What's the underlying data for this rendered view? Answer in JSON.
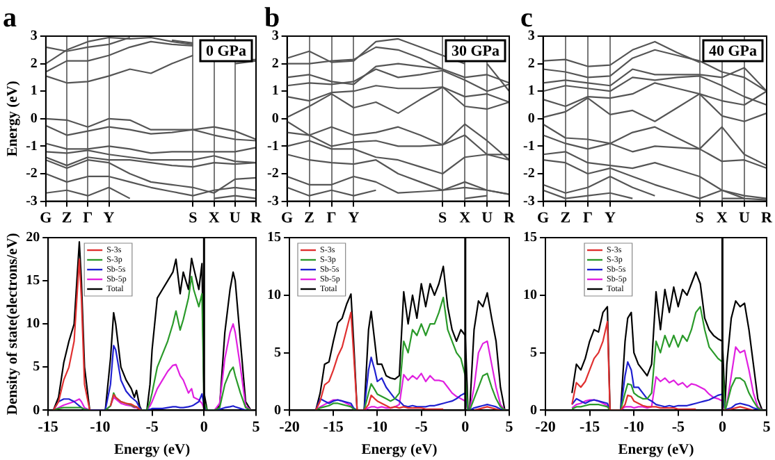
{
  "chart_data": [
    {
      "type": "line",
      "title": "a",
      "ylabel": "Energy (eV)",
      "annotations": [
        "0 GPa"
      ],
      "grid": "x",
      "legend": false,
      "categories": [
        "G",
        "Z",
        "Γ",
        "Y",
        null,
        null,
        null,
        "S",
        "X",
        "U",
        "R"
      ],
      "ylim": [
        -3,
        3
      ],
      "yticks": [
        -3,
        -2,
        -1,
        0,
        1,
        2,
        3
      ],
      "series": [
        {
          "color": "#555555",
          "values": [
            1.55,
            1.3,
            1.35,
            1.55,
            1.8,
            1.65,
            2.0,
            2.3,
            null,
            2.0,
            2.1
          ]
        },
        {
          "color": "#555555",
          "values": [
            1.7,
            2.1,
            2.1,
            2.3,
            2.6,
            2.8,
            2.7,
            2.65,
            null,
            2.1,
            2.15
          ]
        },
        {
          "color": "#555555",
          "values": [
            2.0,
            2.5,
            2.8,
            2.95,
            2.9,
            2.95,
            2.8,
            2.7,
            null,
            null,
            null
          ]
        },
        {
          "color": "#555555",
          "values": [
            2.6,
            2.45,
            2.6,
            2.7,
            2.95,
            null,
            2.85,
            2.75,
            null,
            null,
            null
          ]
        },
        {
          "color": "#555555",
          "values": [
            0.0,
            -0.05,
            -0.3,
            0.0,
            -0.05,
            -0.4,
            -0.4,
            -0.4,
            -0.3,
            -0.45,
            -0.75
          ]
        },
        {
          "color": "#555555",
          "values": [
            -0.25,
            -0.6,
            -0.45,
            -0.3,
            -0.4,
            -0.55,
            -0.5,
            -0.4,
            -0.6,
            -0.75,
            -0.8
          ]
        },
        {
          "color": "#555555",
          "values": [
            -1.4,
            -1.7,
            -1.4,
            -1.5,
            -1.5,
            -1.6,
            -1.7,
            -1.75,
            -1.6,
            -1.65,
            -1.6
          ]
        },
        {
          "color": "#555555",
          "values": [
            -0.9,
            -1.1,
            -1.1,
            -1.0,
            -1.1,
            -1.25,
            -1.2,
            -1.2,
            -1.2,
            -1.2,
            -1.05
          ]
        },
        {
          "color": "#555555",
          "values": [
            -1.2,
            -1.25,
            -1.15,
            -1.3,
            -1.4,
            -1.5,
            -1.5,
            -1.5,
            -1.35,
            -1.55,
            -1.6
          ]
        },
        {
          "color": "#555555",
          "values": [
            -1.5,
            -1.8,
            -1.5,
            -1.6,
            -2.0,
            -2.3,
            -2.4,
            -2.5,
            -2.7,
            -2.2,
            -2.15
          ]
        },
        {
          "color": "#555555",
          "values": [
            -2.0,
            -2.3,
            -2.1,
            -2.1,
            -2.3,
            -2.5,
            -2.65,
            -2.8,
            -2.6,
            -2.5,
            -2.6
          ]
        },
        {
          "color": "#555555",
          "values": [
            -2.7,
            -2.6,
            -2.8,
            -2.5,
            -2.9,
            null,
            null,
            null,
            -2.9,
            -2.8,
            -2.9
          ]
        }
      ]
    },
    {
      "type": "line",
      "title": "b",
      "annotations": [
        "30 GPa"
      ],
      "grid": "x",
      "legend": false,
      "categories": [
        "G",
        "Z",
        "Γ",
        "Y",
        null,
        null,
        null,
        "S",
        "X",
        "U",
        "R"
      ],
      "ylim": [
        -3,
        3
      ],
      "yticks": [
        -3,
        -2,
        -1,
        0,
        1,
        2,
        3
      ],
      "series": [
        {
          "color": "#555555",
          "values": [
            0.05,
            0.45,
            0.9,
            0.4,
            0.6,
            0.2,
            0.7,
            1.15,
            0.45,
            0.35,
            0.6
          ]
        },
        {
          "color": "#555555",
          "values": [
            0.8,
            0.65,
            0.95,
            1.0,
            1.2,
            1.1,
            1.1,
            1.15,
            0.8,
            0.9,
            0.6
          ]
        },
        {
          "color": "#555555",
          "values": [
            1.2,
            1.3,
            1.25,
            1.35,
            1.8,
            1.5,
            1.6,
            1.75,
            1.4,
            1.0,
            1.25
          ]
        },
        {
          "color": "#555555",
          "values": [
            1.5,
            1.6,
            1.35,
            1.25,
            1.9,
            2.0,
            1.9,
            1.8,
            1.5,
            1.6,
            1.3
          ]
        },
        {
          "color": "#555555",
          "values": [
            2.0,
            2.0,
            2.1,
            2.15,
            2.6,
            2.5,
            2.2,
            1.8,
            null,
            2.0,
            1.0
          ]
        },
        {
          "color": "#555555",
          "values": [
            2.2,
            2.45,
            2.05,
            2.1,
            2.8,
            2.9,
            2.6,
            2.3,
            2.0,
            null,
            null
          ]
        },
        {
          "color": "#555555",
          "values": [
            -0.1,
            -0.6,
            -0.3,
            -0.6,
            -0.5,
            -0.3,
            -0.6,
            -0.95,
            -0.2,
            -0.8,
            -1.5
          ]
        },
        {
          "color": "#555555",
          "values": [
            -0.5,
            -0.6,
            -1.0,
            -0.85,
            -0.8,
            -1.0,
            -1.0,
            -0.95,
            -0.6,
            -1.3,
            -1.5
          ]
        },
        {
          "color": "#555555",
          "values": [
            -1.0,
            -0.8,
            -1.1,
            -1.1,
            -1.4,
            -1.5,
            -1.75,
            -2.0,
            -1.4,
            -1.3,
            -1.3
          ]
        },
        {
          "color": "#555555",
          "values": [
            -1.3,
            -1.5,
            -1.6,
            -1.65,
            -1.5,
            -2.0,
            -2.3,
            -2.6,
            -2.5,
            -2.6,
            -2.75
          ]
        },
        {
          "color": "#555555",
          "values": [
            -2.1,
            -2.4,
            -2.4,
            -2.1,
            -2.3,
            -2.7,
            -2.65,
            -2.6,
            -2.3,
            -2.6,
            -2.75
          ]
        },
        {
          "color": "#555555",
          "values": [
            -2.5,
            -2.8,
            -2.6,
            -2.8,
            -2.6,
            null,
            null,
            null,
            -2.9,
            -2.8,
            null
          ]
        }
      ]
    },
    {
      "type": "line",
      "title": "c",
      "annotations": [
        "40 GPa"
      ],
      "grid": "x",
      "legend": false,
      "categories": [
        "G",
        "Z",
        "Γ",
        "Y",
        null,
        null,
        null,
        "S",
        "X",
        "U",
        "R"
      ],
      "ylim": [
        -3,
        3
      ],
      "yticks": [
        -3,
        -2,
        -1,
        0,
        1,
        2,
        3
      ],
      "series": [
        {
          "color": "#555555",
          "values": [
            0.05,
            0.25,
            0.75,
            0.15,
            0.3,
            -0.1,
            0.4,
            0.9,
            0.1,
            -0.1,
            0.2
          ]
        },
        {
          "color": "#555555",
          "values": [
            0.7,
            0.45,
            0.8,
            0.75,
            0.9,
            1.3,
            1.1,
            0.9,
            0.65,
            0.5,
            1.0
          ]
        },
        {
          "color": "#555555",
          "values": [
            1.0,
            1.2,
            1.1,
            1.0,
            1.5,
            1.4,
            1.5,
            1.55,
            1.2,
            0.8,
            0.5
          ]
        },
        {
          "color": "#555555",
          "values": [
            1.3,
            1.4,
            1.3,
            1.2,
            1.8,
            1.6,
            1.6,
            1.6,
            1.5,
            1.85,
            1.0
          ]
        },
        {
          "color": "#555555",
          "values": [
            1.8,
            1.7,
            1.5,
            1.55,
            2.2,
            2.5,
            2.3,
            2.1,
            1.7,
            1.5,
            1.0
          ]
        },
        {
          "color": "#555555",
          "values": [
            2.1,
            2.15,
            1.9,
            1.95,
            2.5,
            2.8,
            2.4,
            2.05,
            null,
            null,
            null
          ]
        },
        {
          "color": "#555555",
          "values": [
            -0.2,
            -0.7,
            -0.75,
            -0.9,
            -0.5,
            -0.3,
            -0.7,
            -1.1,
            -0.3,
            -1.3,
            -1.7
          ]
        },
        {
          "color": "#555555",
          "values": [
            -0.6,
            -0.9,
            -1.1,
            -0.9,
            -1.2,
            -1.0,
            -1.05,
            -1.1,
            -1.55,
            -1.5,
            -1.8
          ]
        },
        {
          "color": "#555555",
          "values": [
            -1.3,
            -1.2,
            -1.6,
            -1.7,
            -1.8,
            -1.6,
            -1.85,
            -2.1,
            -2.6,
            -2.9,
            -2.95
          ]
        },
        {
          "color": "#555555",
          "values": [
            -1.5,
            -1.6,
            -2.0,
            -1.8,
            -2.1,
            -2.4,
            -2.65,
            -2.9,
            -2.6,
            -2.8,
            -2.9
          ]
        },
        {
          "color": "#555555",
          "values": [
            -2.4,
            -2.7,
            -2.5,
            -2.1,
            -2.5,
            -2.8,
            null,
            null,
            -2.9,
            -2.9,
            null
          ]
        },
        {
          "color": "#555555",
          "values": [
            -2.6,
            -2.9,
            -2.8,
            -2.7,
            -2.9,
            null,
            null,
            null,
            null,
            null,
            null
          ]
        }
      ]
    },
    {
      "type": "line",
      "xlabel": "Energy (eV)",
      "ylabel": "Density of state(electrons/eV)",
      "legend": "top left",
      "grid": false,
      "x": [
        -14.5,
        -14,
        -13.5,
        -13,
        -12.5,
        -12,
        -11.8,
        -11.5,
        -11,
        -10,
        -9.5,
        -9,
        -8.7,
        -8.5,
        -8,
        -7.5,
        -7,
        -6.7,
        -6.5,
        -6.2,
        -6,
        -5.5,
        -5.2,
        -5,
        -4.5,
        -4,
        -3.5,
        -3,
        -2.7,
        -2.3,
        -2,
        -1.5,
        -1.2,
        -1,
        -0.5,
        -0.2,
        0,
        0.3,
        1,
        1.5,
        2,
        2.5,
        2.8,
        3,
        3.5,
        4,
        4.5
      ],
      "xlim": [
        -15,
        5
      ],
      "xticks": [
        -15,
        -10,
        -5,
        0,
        5
      ],
      "ylim": [
        0,
        20
      ],
      "yticks": [
        0,
        5,
        10,
        15,
        20
      ],
      "ref_lines": [
        {
          "axis": "x",
          "value": 0,
          "color": "#000000"
        }
      ],
      "series": [
        {
          "name": "S-3s",
          "color": "#e03030",
          "values": [
            0,
            1,
            3.5,
            5,
            8,
            17.5,
            13,
            3,
            0,
            null,
            null,
            0.5,
            1.8,
            1.5,
            1,
            0.8,
            0.7,
            0.5,
            0.4,
            0.1,
            0,
            null,
            null,
            null,
            null,
            null,
            null,
            null,
            null,
            null,
            null,
            null,
            null,
            null,
            null,
            null,
            null,
            null,
            null,
            null,
            null,
            null,
            null,
            null,
            null,
            null,
            null
          ]
        },
        {
          "name": "S-3p",
          "color": "#2a9a2a",
          "values": [
            0,
            0.2,
            0.3,
            0.3,
            0.3,
            0.3,
            0.3,
            0.1,
            0,
            null,
            0,
            0.5,
            2,
            1.5,
            1,
            0.8,
            0.6,
            0.4,
            0.4,
            0.1,
            0,
            0,
            1,
            2,
            5,
            6.5,
            8,
            10,
            11.5,
            9.3,
            10.5,
            13,
            15.5,
            14,
            12,
            13.5,
            1,
            0,
            0,
            0.3,
            3,
            4.5,
            5,
            4,
            2,
            0.3,
            0
          ]
        },
        {
          "name": "Sb-5s",
          "color": "#2020d0",
          "values": [
            0,
            1,
            1.3,
            1.3,
            1,
            0.5,
            0.3,
            0.1,
            0,
            0,
            0,
            3,
            7.5,
            7,
            3.5,
            2.2,
            1.5,
            1.2,
            1,
            0.3,
            0,
            0,
            0.1,
            0.2,
            0.2,
            0.2,
            0.3,
            0.4,
            0.4,
            0.3,
            0.3,
            0.4,
            0.5,
            0.6,
            1,
            1.9,
            0.5,
            0,
            0,
            0.1,
            0.3,
            0.4,
            0.5,
            0.4,
            0.2,
            0,
            0
          ]
        },
        {
          "name": "Sb-5p",
          "color": "#e020e0",
          "values": [
            0,
            0.3,
            0.6,
            0.8,
            1,
            1.3,
            1,
            0.3,
            0,
            0,
            0,
            0.5,
            1.5,
            1.3,
            0.8,
            0.6,
            0.5,
            0.3,
            0.3,
            0.1,
            0,
            0,
            0.5,
            1,
            2.5,
            3.5,
            4.5,
            5.2,
            5.3,
            4,
            3.5,
            2,
            2.5,
            1.5,
            1.2,
            0.8,
            0.2,
            0,
            0,
            0.8,
            6,
            9,
            10,
            9,
            5,
            0.5,
            0
          ]
        },
        {
          "name": "Total",
          "color": "#000000",
          "values": [
            0,
            1.5,
            5.5,
            8,
            10,
            19.5,
            15,
            5,
            0,
            0,
            0,
            6,
            11.3,
            10,
            5,
            3.5,
            2.5,
            1.5,
            2.3,
            0.5,
            0,
            0,
            3,
            7,
            13,
            14,
            15,
            16,
            17.5,
            13.5,
            16,
            14,
            17.6,
            16.5,
            14,
            17,
            2,
            0,
            0,
            0.5,
            9,
            14,
            16,
            15,
            8,
            1,
            0
          ]
        }
      ]
    },
    {
      "type": "line",
      "xlabel": "Energy (eV)",
      "legend": "top left",
      "grid": false,
      "x": [
        -17,
        -16.5,
        -16,
        -15.5,
        -15,
        -14.5,
        -14,
        -13.5,
        -13,
        -12.7,
        -12.3,
        -12,
        -11.5,
        -11,
        -10.7,
        -10.3,
        -10,
        -9.5,
        -9,
        -8.5,
        -8,
        -7.5,
        -7,
        -6.5,
        -6,
        -5.5,
        -5,
        -4.5,
        -4,
        -3.5,
        -3,
        -2.5,
        -2,
        -1.5,
        -1,
        -0.5,
        0,
        0.3,
        0.5,
        1,
        1.5,
        2,
        2.5,
        3,
        3.5,
        4,
        4.5
      ],
      "xlim": [
        -20,
        5
      ],
      "xticks": [
        -20,
        -15,
        -10,
        -5,
        0,
        5
      ],
      "ylim": [
        0,
        15
      ],
      "yticks": [
        0,
        5,
        10,
        15
      ],
      "ref_lines": [
        {
          "axis": "x",
          "value": 0,
          "color": "#000000"
        }
      ],
      "series": [
        {
          "name": "S-3s",
          "color": "#e03030",
          "values": [
            0,
            0.8,
            2.2,
            2.5,
            3.5,
            4.7,
            5.5,
            7,
            8.5,
            5,
            0,
            0,
            0,
            0.5,
            1.3,
            1,
            0.8,
            0.6,
            0.4,
            0.2,
            0.3,
            0.2,
            0.3,
            0.2,
            0.2,
            0.2,
            0.2,
            0.1,
            0.1,
            0.1,
            0.1,
            0.1,
            null,
            null,
            null,
            null,
            null,
            null,
            null,
            0,
            0.1,
            0.2,
            0.3,
            0.2,
            0.1,
            0,
            null
          ]
        },
        {
          "name": "S-3p",
          "color": "#2a9a2a",
          "values": [
            0,
            0.2,
            0.3,
            0.4,
            0.6,
            0.6,
            0.5,
            0.4,
            0.3,
            0.1,
            0,
            0,
            0,
            1.5,
            2.3,
            1.8,
            1.4,
            1.2,
            1,
            0.8,
            1,
            1.5,
            6,
            5,
            7,
            6.5,
            7.5,
            6.5,
            7.5,
            7.5,
            8.5,
            9.8,
            7,
            6,
            5,
            4.5,
            3,
            0,
            0,
            1,
            2,
            3,
            3.2,
            2,
            1,
            0.3,
            0
          ]
        },
        {
          "name": "Sb-5s",
          "color": "#2020d0",
          "values": [
            0,
            1,
            0.8,
            0.6,
            0.8,
            0.9,
            0.8,
            0.7,
            0.6,
            0.2,
            0,
            0,
            0,
            3.5,
            4.6,
            3.5,
            2.5,
            2.8,
            2,
            1.5,
            1,
            0.8,
            0.4,
            0.3,
            0.4,
            0.3,
            0.3,
            0.3,
            0.4,
            0.4,
            0.5,
            0.6,
            0.7,
            0.8,
            1,
            1.3,
            1.5,
            0.1,
            0,
            0.2,
            0.3,
            0.4,
            0.5,
            0.4,
            0.3,
            0.1,
            0
          ]
        },
        {
          "name": "Sb-5p",
          "color": "#e020e0",
          "values": [
            0,
            0.3,
            0.5,
            0.7,
            0.9,
            0.9,
            0.8,
            0.6,
            0.4,
            0.1,
            0,
            0,
            0,
            0.2,
            0.3,
            0.3,
            0.2,
            0.3,
            0.2,
            0.2,
            0.3,
            0.5,
            3.1,
            2.6,
            3,
            2.7,
            3.2,
            2.5,
            3,
            2.6,
            2.6,
            2.5,
            2,
            1.5,
            1.2,
            1,
            0.8,
            0,
            0,
            2,
            5,
            5.8,
            6,
            4,
            2,
            0.5,
            0
          ]
        },
        {
          "name": "Total",
          "color": "#000000",
          "values": [
            0,
            1.5,
            4,
            4.2,
            6,
            7.6,
            8,
            9.2,
            10.1,
            6,
            0,
            0,
            0,
            7,
            8.6,
            6,
            4,
            4,
            3,
            2.8,
            2.7,
            3,
            10.3,
            7.5,
            10,
            8,
            11,
            9,
            11,
            10,
            11,
            12.5,
            9,
            7,
            6,
            7,
            6.5,
            0.2,
            0,
            7,
            9.5,
            9,
            10.2,
            8,
            6,
            2,
            0
          ]
        }
      ]
    },
    {
      "type": "line",
      "xlabel": "Energy (eV)",
      "legend": "top left",
      "grid": false,
      "x": [
        -17,
        -16.5,
        -16,
        -15.5,
        -15,
        -14.5,
        -14,
        -13.5,
        -13,
        -12.7,
        -12.3,
        -12,
        -11.5,
        -11,
        -10.7,
        -10.3,
        -10,
        -9.5,
        -9,
        -8.5,
        -8,
        -7.5,
        -7,
        -6.5,
        -6,
        -5.5,
        -5,
        -4.5,
        -4,
        -3.5,
        -3,
        -2.5,
        -2,
        -1.5,
        -1,
        -0.5,
        0,
        0.3,
        0.5,
        1,
        1.5,
        2,
        2.5,
        3,
        3.5,
        4,
        4.5
      ],
      "xlim": [
        -20,
        5
      ],
      "xticks": [
        -20,
        -15,
        -10,
        -5,
        0,
        5
      ],
      "ylim": [
        0,
        15
      ],
      "yticks": [
        0,
        5,
        10,
        15
      ],
      "ref_lines": [
        {
          "axis": "x",
          "value": 0,
          "color": "#000000"
        }
      ],
      "series": [
        {
          "name": "S-3s",
          "color": "#e03030",
          "values": [
            0.5,
            2.4,
            2,
            2.5,
            3.5,
            4.5,
            5,
            6,
            7.7,
            0,
            0,
            0,
            0,
            0.5,
            1.3,
            1.2,
            0.8,
            0.6,
            0.4,
            0.3,
            0.3,
            0.3,
            0.2,
            0.2,
            0.2,
            0.2,
            0.1,
            0.1,
            0.1,
            0.1,
            0.1,
            null,
            null,
            null,
            null,
            null,
            0,
            0,
            0,
            0.1,
            0.2,
            0.3,
            0.2,
            0.1,
            0,
            null,
            null
          ]
        },
        {
          "name": "S-3p",
          "color": "#2a9a2a",
          "values": [
            0.1,
            0.3,
            0.3,
            0.4,
            0.5,
            0.5,
            0.5,
            0.4,
            0.3,
            0,
            0,
            0,
            0,
            1.5,
            2.3,
            2.2,
            1.5,
            1.2,
            1,
            1,
            1.5,
            6,
            5,
            6.5,
            5.5,
            6.5,
            5.5,
            6.5,
            6,
            7,
            8.5,
            9,
            7,
            5.5,
            5,
            4.5,
            4.2,
            0,
            0.5,
            2,
            2.8,
            2.8,
            2.5,
            1.5,
            0.8,
            0.2,
            0
          ]
        },
        {
          "name": "Sb-5s",
          "color": "#2020d0",
          "values": [
            0.5,
            1,
            0.8,
            0.6,
            0.8,
            0.9,
            0.8,
            0.7,
            0.6,
            0,
            0,
            0,
            0,
            3,
            4.2,
            3.5,
            2,
            2,
            1.5,
            1,
            0.8,
            0.5,
            0.4,
            0.3,
            0.4,
            0.3,
            0.4,
            0.4,
            0.4,
            0.5,
            0.6,
            0.7,
            0.8,
            0.9,
            1.1,
            1.3,
            1.4,
            0.1,
            0.1,
            0.2,
            0.5,
            0.6,
            0.5,
            0.4,
            0.2,
            0.1,
            0
          ]
        },
        {
          "name": "Sb-5p",
          "color": "#e020e0",
          "values": [
            0.2,
            0.5,
            0.6,
            0.8,
            0.9,
            0.9,
            0.8,
            0.6,
            0.4,
            0,
            0,
            0,
            0,
            0.3,
            0.3,
            0.3,
            0.2,
            0.3,
            0.3,
            0.2,
            0.3,
            2.9,
            2.5,
            2.8,
            2.4,
            2.6,
            2.2,
            2.4,
            2,
            2.3,
            2.2,
            2,
            1.8,
            1.4,
            1.1,
            1,
            0.8,
            0,
            0.5,
            3,
            5.5,
            5,
            5.2,
            3.5,
            1.5,
            0.3,
            0
          ]
        },
        {
          "name": "Total",
          "color": "#000000",
          "values": [
            1.5,
            4,
            3.5,
            4.5,
            6,
            7,
            6.8,
            8.5,
            9,
            0,
            0,
            0,
            0,
            6,
            8,
            8.5,
            5,
            4,
            3.5,
            3,
            4,
            10.3,
            7,
            10.5,
            8.5,
            10.7,
            9,
            10.5,
            10,
            11,
            12,
            11,
            8,
            7,
            6.5,
            6.2,
            6,
            0.5,
            4,
            8,
            9.5,
            9,
            9.3,
            7,
            4,
            1,
            0
          ]
        }
      ]
    }
  ]
}
